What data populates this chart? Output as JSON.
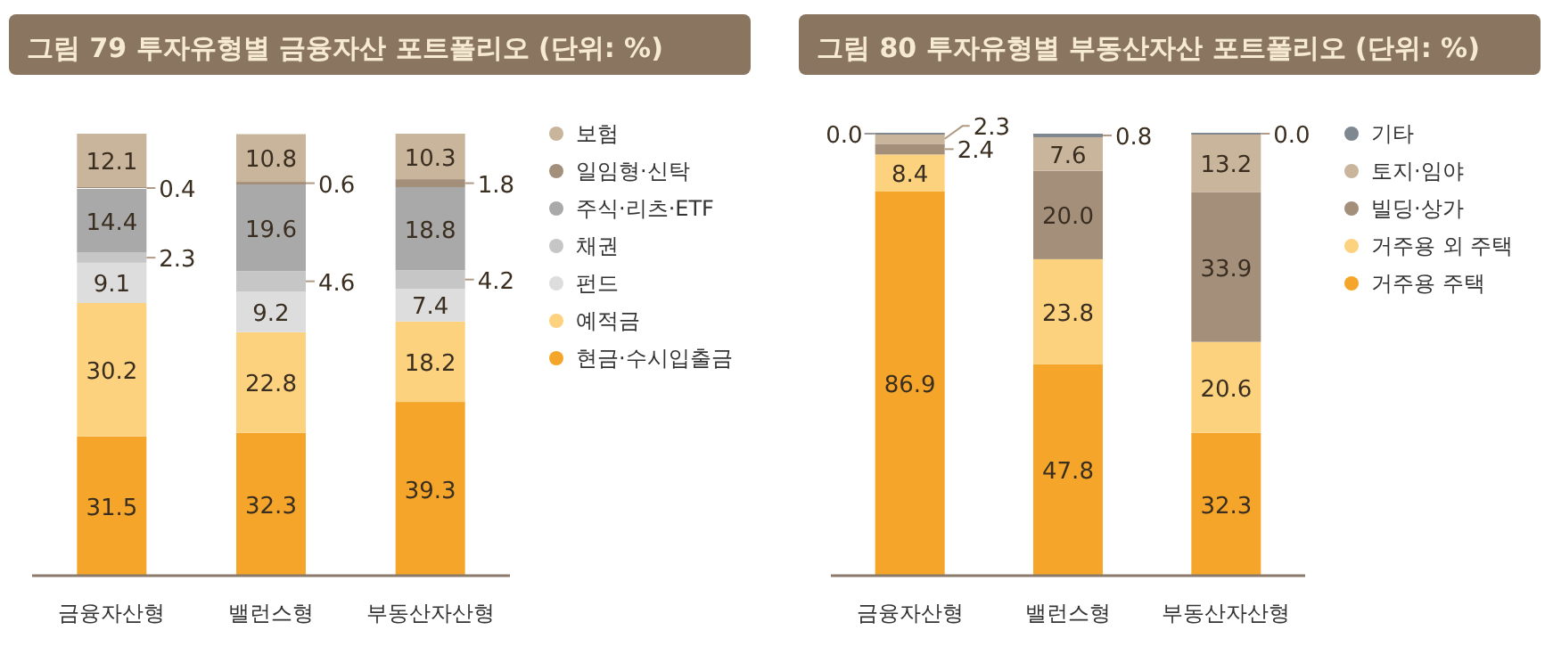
{
  "chart_data": [
    {
      "type": "bar",
      "title": "그림 79  투자유형별 금융자산 포트폴리오  (단위: %)",
      "stacked": true,
      "data_labels": true,
      "legend": "right",
      "categories": [
        "금융자산형",
        "밸런스형",
        "부동산자산형"
      ],
      "series": [
        {
          "name": "현금·수시입출금",
          "color": "#f5a62a",
          "values": [
            31.5,
            32.3,
            39.3
          ]
        },
        {
          "name": "예적금",
          "color": "#fdd27e",
          "values": [
            30.2,
            22.8,
            18.2
          ]
        },
        {
          "name": "펀드",
          "color": "#dddddd",
          "values": [
            9.1,
            9.2,
            7.4
          ]
        },
        {
          "name": "채권",
          "color": "#c6c6c6",
          "values": [
            2.3,
            4.6,
            4.2
          ]
        },
        {
          "name": "주식·리츠·ETF",
          "color": "#a9a9a9",
          "values": [
            14.4,
            19.6,
            18.8
          ]
        },
        {
          "name": "일임형·신탁",
          "color": "#a48f7b",
          "values": [
            0.4,
            0.6,
            1.8
          ]
        },
        {
          "name": "보험",
          "color": "#c9b49c",
          "values": [
            12.1,
            10.8,
            10.3
          ]
        }
      ]
    },
    {
      "type": "bar",
      "title": "그림 80  투자유형별 부동산자산 포트폴리오  (단위: %)",
      "stacked": true,
      "data_labels": true,
      "legend": "right",
      "categories": [
        "금융자산형",
        "밸런스형",
        "부동산자산형"
      ],
      "series": [
        {
          "name": "거주용 주택",
          "color": "#f5a62a",
          "values": [
            86.9,
            47.8,
            32.3
          ]
        },
        {
          "name": "거주용 외 주택",
          "color": "#fdd27e",
          "values": [
            8.4,
            23.8,
            20.6
          ]
        },
        {
          "name": "빌딩·상가",
          "color": "#a48f7b",
          "values": [
            2.4,
            20.0,
            33.9
          ],
          "value_labels": [
            "2.4",
            "20.0",
            "33.9"
          ]
        },
        {
          "name": "토지·임야",
          "color": "#c9b49c",
          "values": [
            2.3,
            7.6,
            13.2
          ]
        },
        {
          "name": "기타",
          "color": "#7f878f",
          "values": [
            0.0,
            0.8,
            0.0
          ],
          "value_labels": [
            "0.0",
            "0.8",
            "0.0"
          ]
        }
      ]
    }
  ]
}
